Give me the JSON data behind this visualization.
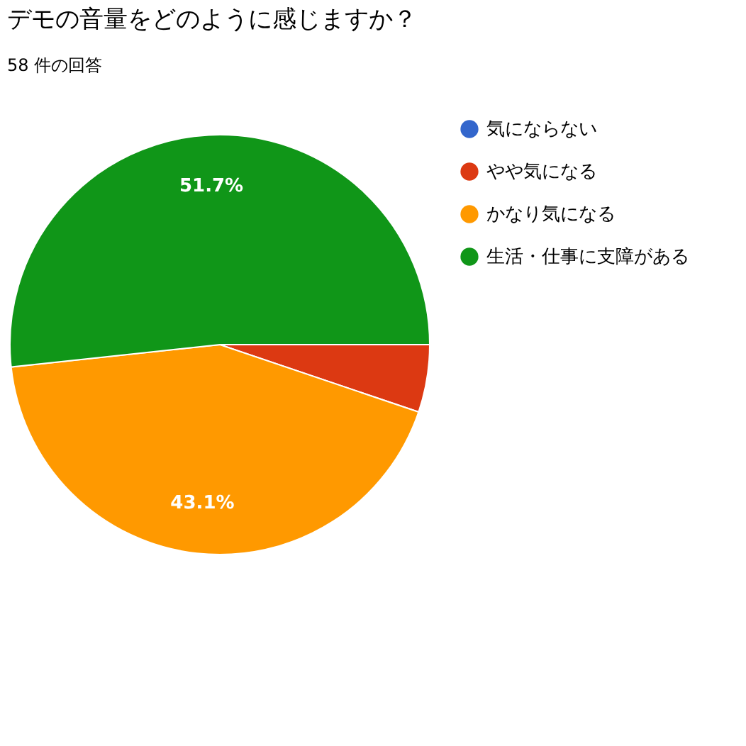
{
  "chart_data": {
    "type": "pie",
    "title": "デモの音量をどのように感じますか？",
    "subtitle": "58 件の回答",
    "categories": [
      "気にならない",
      "やや気になる",
      "かなり気になる",
      "生活・仕事に支障がある"
    ],
    "values": [
      0,
      5.2,
      43.1,
      51.7
    ],
    "colors": [
      "#3366cc",
      "#dc3912",
      "#ff9900",
      "#109618"
    ],
    "value_labels": [
      null,
      null,
      "43.1%",
      "51.7%"
    ],
    "legend": "top right"
  }
}
